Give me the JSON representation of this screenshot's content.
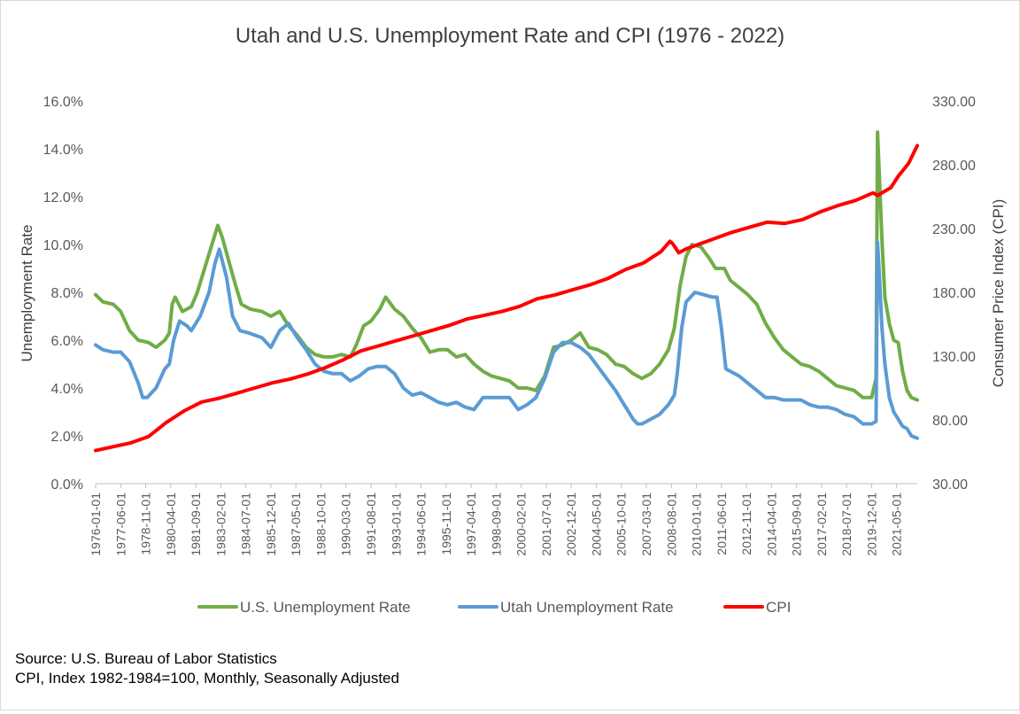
{
  "chart_data": {
    "type": "line",
    "title": "Utah and U.S. Unemployment Rate and CPI (1976 - 2022)",
    "y_left_label": "Unemployment Rate",
    "y_right_label": "Consumer Price Index (CPI)",
    "y_left_range": [
      0,
      16
    ],
    "y_right_range": [
      30,
      330
    ],
    "y_left_ticks": [
      "0.0%",
      "2.0%",
      "4.0%",
      "6.0%",
      "8.0%",
      "10.0%",
      "12.0%",
      "14.0%",
      "16.0%"
    ],
    "y_right_ticks": [
      "30.00",
      "80.00",
      "130.00",
      "180.00",
      "230.00",
      "280.00",
      "330.00"
    ],
    "x_tick_labels": [
      "1976-01-01",
      "1977-06-01",
      "1978-11-01",
      "1980-04-01",
      "1981-09-01",
      "1983-02-01",
      "1984-07-01",
      "1985-12-01",
      "1987-05-01",
      "1988-10-01",
      "1990-03-01",
      "1991-08-01",
      "1993-01-01",
      "1994-06-01",
      "1995-11-01",
      "1997-04-01",
      "1998-09-01",
      "2000-02-01",
      "2001-07-01",
      "2002-12-01",
      "2004-05-01",
      "2005-10-01",
      "2007-03-01",
      "2008-08-01",
      "2010-01-01",
      "2011-06-01",
      "2012-11-01",
      "2014-04-01",
      "2015-09-01",
      "2017-02-01",
      "2018-07-01",
      "2019-12-01",
      "2021-05-01"
    ],
    "x_range": [
      "1976-01",
      "2022-07"
    ],
    "grid": false,
    "legend": "bottom",
    "series": [
      {
        "name": "U.S. Unemployment Rate",
        "axis": "left",
        "color": "#70ad47",
        "points": [
          [
            "1976-01",
            7.9
          ],
          [
            "1976-06",
            7.6
          ],
          [
            "1977-01",
            7.5
          ],
          [
            "1977-06",
            7.2
          ],
          [
            "1977-12",
            6.4
          ],
          [
            "1978-06",
            6.0
          ],
          [
            "1979-01",
            5.9
          ],
          [
            "1979-06",
            5.7
          ],
          [
            "1979-12",
            6.0
          ],
          [
            "1980-03",
            6.3
          ],
          [
            "1980-05",
            7.5
          ],
          [
            "1980-07",
            7.8
          ],
          [
            "1980-12",
            7.2
          ],
          [
            "1981-06",
            7.4
          ],
          [
            "1981-10",
            8.0
          ],
          [
            "1982-03",
            9.0
          ],
          [
            "1982-07",
            9.8
          ],
          [
            "1982-10",
            10.4
          ],
          [
            "1982-12",
            10.8
          ],
          [
            "1983-03",
            10.3
          ],
          [
            "1983-07",
            9.4
          ],
          [
            "1983-12",
            8.3
          ],
          [
            "1984-04",
            7.5
          ],
          [
            "1984-10",
            7.3
          ],
          [
            "1985-06",
            7.2
          ],
          [
            "1985-12",
            7.0
          ],
          [
            "1986-06",
            7.2
          ],
          [
            "1986-12",
            6.6
          ],
          [
            "1987-06",
            6.2
          ],
          [
            "1987-12",
            5.7
          ],
          [
            "1988-06",
            5.4
          ],
          [
            "1988-12",
            5.3
          ],
          [
            "1989-06",
            5.3
          ],
          [
            "1989-12",
            5.4
          ],
          [
            "1990-06",
            5.3
          ],
          [
            "1990-10",
            5.8
          ],
          [
            "1991-03",
            6.6
          ],
          [
            "1991-08",
            6.8
          ],
          [
            "1992-02",
            7.3
          ],
          [
            "1992-06",
            7.8
          ],
          [
            "1992-12",
            7.3
          ],
          [
            "1993-06",
            7.0
          ],
          [
            "1993-12",
            6.5
          ],
          [
            "1994-06",
            6.1
          ],
          [
            "1994-12",
            5.5
          ],
          [
            "1995-06",
            5.6
          ],
          [
            "1995-12",
            5.6
          ],
          [
            "1996-06",
            5.3
          ],
          [
            "1996-12",
            5.4
          ],
          [
            "1997-06",
            5.0
          ],
          [
            "1997-12",
            4.7
          ],
          [
            "1998-06",
            4.5
          ],
          [
            "1998-12",
            4.4
          ],
          [
            "1999-06",
            4.3
          ],
          [
            "1999-12",
            4.0
          ],
          [
            "2000-06",
            4.0
          ],
          [
            "2000-12",
            3.9
          ],
          [
            "2001-06",
            4.5
          ],
          [
            "2001-12",
            5.7
          ],
          [
            "2002-06",
            5.8
          ],
          [
            "2002-12",
            6.0
          ],
          [
            "2003-06",
            6.3
          ],
          [
            "2003-12",
            5.7
          ],
          [
            "2004-06",
            5.6
          ],
          [
            "2004-12",
            5.4
          ],
          [
            "2005-06",
            5.0
          ],
          [
            "2005-12",
            4.9
          ],
          [
            "2006-06",
            4.6
          ],
          [
            "2006-12",
            4.4
          ],
          [
            "2007-06",
            4.6
          ],
          [
            "2007-12",
            5.0
          ],
          [
            "2008-06",
            5.6
          ],
          [
            "2008-10",
            6.5
          ],
          [
            "2009-02",
            8.3
          ],
          [
            "2009-06",
            9.5
          ],
          [
            "2009-10",
            10.0
          ],
          [
            "2010-04",
            9.9
          ],
          [
            "2010-10",
            9.4
          ],
          [
            "2011-02",
            9.0
          ],
          [
            "2011-08",
            9.0
          ],
          [
            "2011-12",
            8.5
          ],
          [
            "2012-06",
            8.2
          ],
          [
            "2012-12",
            7.9
          ],
          [
            "2013-06",
            7.5
          ],
          [
            "2013-12",
            6.7
          ],
          [
            "2014-06",
            6.1
          ],
          [
            "2014-12",
            5.6
          ],
          [
            "2015-06",
            5.3
          ],
          [
            "2015-12",
            5.0
          ],
          [
            "2016-06",
            4.9
          ],
          [
            "2016-12",
            4.7
          ],
          [
            "2017-06",
            4.4
          ],
          [
            "2017-12",
            4.1
          ],
          [
            "2018-06",
            4.0
          ],
          [
            "2018-12",
            3.9
          ],
          [
            "2019-06",
            3.6
          ],
          [
            "2019-12",
            3.6
          ],
          [
            "2020-03",
            4.4
          ],
          [
            "2020-04",
            14.7
          ],
          [
            "2020-05",
            13.2
          ],
          [
            "2020-07",
            10.2
          ],
          [
            "2020-09",
            7.8
          ],
          [
            "2020-12",
            6.7
          ],
          [
            "2021-03",
            6.0
          ],
          [
            "2021-06",
            5.9
          ],
          [
            "2021-09",
            4.7
          ],
          [
            "2021-12",
            3.9
          ],
          [
            "2022-03",
            3.6
          ],
          [
            "2022-07",
            3.5
          ]
        ]
      },
      {
        "name": "Utah Unemployment Rate",
        "axis": "left",
        "color": "#5b9bd5",
        "points": [
          [
            "1976-01",
            5.8
          ],
          [
            "1976-06",
            5.6
          ],
          [
            "1977-01",
            5.5
          ],
          [
            "1977-06",
            5.5
          ],
          [
            "1977-12",
            5.1
          ],
          [
            "1978-06",
            4.2
          ],
          [
            "1978-09",
            3.6
          ],
          [
            "1978-12",
            3.6
          ],
          [
            "1979-06",
            4.0
          ],
          [
            "1979-12",
            4.8
          ],
          [
            "1980-03",
            5.0
          ],
          [
            "1980-06",
            6.0
          ],
          [
            "1980-10",
            6.8
          ],
          [
            "1981-03",
            6.6
          ],
          [
            "1981-06",
            6.4
          ],
          [
            "1981-12",
            7.0
          ],
          [
            "1982-06",
            8.0
          ],
          [
            "1982-10",
            9.2
          ],
          [
            "1983-01",
            9.8
          ],
          [
            "1983-06",
            8.6
          ],
          [
            "1983-10",
            7.0
          ],
          [
            "1984-03",
            6.4
          ],
          [
            "1984-09",
            6.3
          ],
          [
            "1985-06",
            6.1
          ],
          [
            "1985-12",
            5.7
          ],
          [
            "1986-06",
            6.4
          ],
          [
            "1986-12",
            6.7
          ],
          [
            "1987-06",
            6.1
          ],
          [
            "1987-12",
            5.6
          ],
          [
            "1988-06",
            5.0
          ],
          [
            "1988-12",
            4.7
          ],
          [
            "1989-06",
            4.6
          ],
          [
            "1989-12",
            4.6
          ],
          [
            "1990-06",
            4.3
          ],
          [
            "1990-12",
            4.5
          ],
          [
            "1991-06",
            4.8
          ],
          [
            "1991-12",
            4.9
          ],
          [
            "1992-06",
            4.9
          ],
          [
            "1992-12",
            4.6
          ],
          [
            "1993-06",
            4.0
          ],
          [
            "1993-12",
            3.7
          ],
          [
            "1994-06",
            3.8
          ],
          [
            "1994-12",
            3.6
          ],
          [
            "1995-06",
            3.4
          ],
          [
            "1995-12",
            3.3
          ],
          [
            "1996-06",
            3.4
          ],
          [
            "1996-12",
            3.2
          ],
          [
            "1997-06",
            3.1
          ],
          [
            "1997-12",
            3.6
          ],
          [
            "1998-06",
            3.6
          ],
          [
            "1998-12",
            3.6
          ],
          [
            "1999-06",
            3.6
          ],
          [
            "1999-12",
            3.1
          ],
          [
            "2000-06",
            3.3
          ],
          [
            "2000-12",
            3.6
          ],
          [
            "2001-06",
            4.4
          ],
          [
            "2001-12",
            5.5
          ],
          [
            "2002-06",
            5.9
          ],
          [
            "2002-12",
            5.9
          ],
          [
            "2003-06",
            5.7
          ],
          [
            "2003-12",
            5.4
          ],
          [
            "2004-06",
            4.9
          ],
          [
            "2004-12",
            4.4
          ],
          [
            "2005-06",
            3.9
          ],
          [
            "2005-12",
            3.3
          ],
          [
            "2006-06",
            2.7
          ],
          [
            "2006-09",
            2.5
          ],
          [
            "2006-12",
            2.5
          ],
          [
            "2007-06",
            2.7
          ],
          [
            "2007-12",
            2.9
          ],
          [
            "2008-06",
            3.3
          ],
          [
            "2008-10",
            3.7
          ],
          [
            "2008-12",
            4.6
          ],
          [
            "2009-03",
            6.5
          ],
          [
            "2009-06",
            7.6
          ],
          [
            "2009-12",
            8.0
          ],
          [
            "2010-06",
            7.9
          ],
          [
            "2010-12",
            7.8
          ],
          [
            "2011-03",
            7.8
          ],
          [
            "2011-06",
            6.5
          ],
          [
            "2011-09",
            4.8
          ],
          [
            "2011-12",
            4.7
          ],
          [
            "2012-06",
            4.5
          ],
          [
            "2012-12",
            4.2
          ],
          [
            "2013-06",
            3.9
          ],
          [
            "2013-12",
            3.6
          ],
          [
            "2014-06",
            3.6
          ],
          [
            "2014-12",
            3.5
          ],
          [
            "2015-06",
            3.5
          ],
          [
            "2015-12",
            3.5
          ],
          [
            "2016-06",
            3.3
          ],
          [
            "2016-12",
            3.2
          ],
          [
            "2017-06",
            3.2
          ],
          [
            "2017-12",
            3.1
          ],
          [
            "2018-06",
            2.9
          ],
          [
            "2018-12",
            2.8
          ],
          [
            "2019-06",
            2.5
          ],
          [
            "2019-12",
            2.5
          ],
          [
            "2020-03",
            2.6
          ],
          [
            "2020-04",
            10.1
          ],
          [
            "2020-05",
            9.0
          ],
          [
            "2020-07",
            6.5
          ],
          [
            "2020-09",
            5.0
          ],
          [
            "2020-12",
            3.6
          ],
          [
            "2021-03",
            3.0
          ],
          [
            "2021-06",
            2.7
          ],
          [
            "2021-09",
            2.4
          ],
          [
            "2021-12",
            2.3
          ],
          [
            "2022-03",
            2.0
          ],
          [
            "2022-07",
            1.9
          ]
        ]
      },
      {
        "name": "CPI",
        "axis": "right",
        "color": "#ff0000",
        "points": [
          [
            "1976-01",
            56
          ],
          [
            "1977-01",
            59
          ],
          [
            "1978-01",
            62
          ],
          [
            "1979-01",
            67
          ],
          [
            "1980-01",
            78
          ],
          [
            "1981-01",
            87
          ],
          [
            "1982-01",
            94
          ],
          [
            "1983-01",
            97
          ],
          [
            "1984-01",
            101
          ],
          [
            "1985-01",
            105
          ],
          [
            "1986-01",
            109
          ],
          [
            "1987-01",
            112
          ],
          [
            "1988-01",
            116
          ],
          [
            "1989-01",
            121
          ],
          [
            "1990-01",
            127
          ],
          [
            "1991-01",
            134
          ],
          [
            "1992-01",
            138
          ],
          [
            "1993-01",
            142
          ],
          [
            "1994-01",
            146
          ],
          [
            "1995-01",
            150
          ],
          [
            "1996-01",
            154
          ],
          [
            "1997-01",
            159
          ],
          [
            "1998-01",
            162
          ],
          [
            "1999-01",
            165
          ],
          [
            "2000-01",
            169
          ],
          [
            "2001-01",
            175
          ],
          [
            "2002-01",
            178
          ],
          [
            "2003-01",
            182
          ],
          [
            "2004-01",
            186
          ],
          [
            "2005-01",
            191
          ],
          [
            "2006-01",
            198
          ],
          [
            "2007-01",
            203
          ],
          [
            "2008-01",
            212
          ],
          [
            "2008-07",
            220
          ],
          [
            "2008-09",
            218
          ],
          [
            "2009-01",
            211
          ],
          [
            "2009-06",
            214
          ],
          [
            "2010-01",
            217
          ],
          [
            "2011-01",
            222
          ],
          [
            "2012-01",
            227
          ],
          [
            "2013-01",
            231
          ],
          [
            "2014-01",
            235
          ],
          [
            "2015-01",
            234
          ],
          [
            "2016-01",
            237
          ],
          [
            "2017-01",
            243
          ],
          [
            "2018-01",
            248
          ],
          [
            "2019-01",
            252
          ],
          [
            "2020-01",
            258
          ],
          [
            "2020-04",
            256
          ],
          [
            "2021-01",
            262
          ],
          [
            "2021-06",
            271
          ],
          [
            "2022-01",
            281
          ],
          [
            "2022-07",
            295
          ]
        ]
      }
    ]
  },
  "source_lines": [
    "Source: U.S. Bureau of Labor Statistics",
    "CPI, Index 1982-1984=100, Monthly, Seasonally Adjusted"
  ]
}
